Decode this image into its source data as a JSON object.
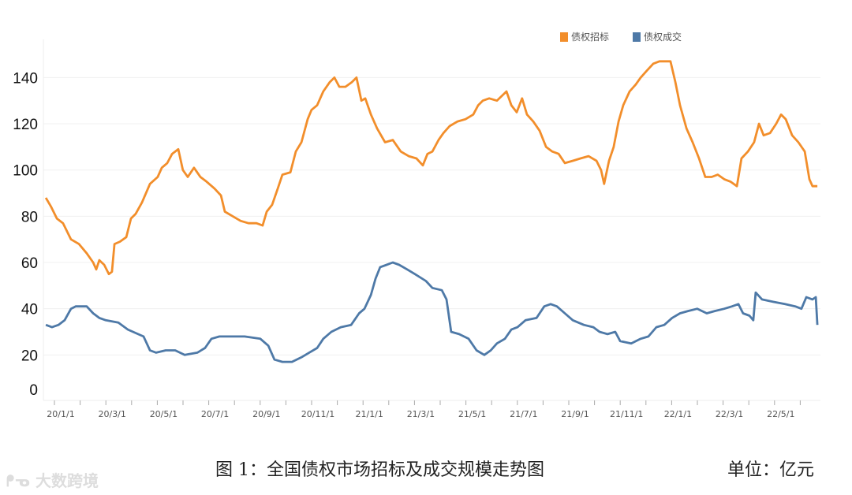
{
  "chart_data": {
    "type": "line",
    "title": "图 1：全国债权市场招标及成交规模走势图",
    "unit": "单位：亿元",
    "xlabel": "",
    "ylabel": "",
    "x_unit": "months since 2020-01-01",
    "xlim": [
      -0.7,
      29.5
    ],
    "ylim": [
      -5,
      150
    ],
    "yticks": [
      0,
      20,
      40,
      60,
      80,
      100,
      120,
      140
    ],
    "xticks": [
      {
        "m": 0,
        "label": "20/1/1"
      },
      {
        "m": 2,
        "label": "20/3/1"
      },
      {
        "m": 4,
        "label": "20/5/1"
      },
      {
        "m": 6,
        "label": "20/7/1"
      },
      {
        "m": 8,
        "label": "20/9/1"
      },
      {
        "m": 10,
        "label": "20/11/1"
      },
      {
        "m": 12,
        "label": "21/1/1"
      },
      {
        "m": 14,
        "label": "21/3/1"
      },
      {
        "m": 16,
        "label": "21/5/1"
      },
      {
        "m": 18,
        "label": "21/7/1"
      },
      {
        "m": 20,
        "label": "21/9/1"
      },
      {
        "m": 22,
        "label": "21/11/1"
      },
      {
        "m": 24,
        "label": "22/1/1"
      },
      {
        "m": 26,
        "label": "22/3/1"
      },
      {
        "m": 28,
        "label": "22/5/1"
      }
    ],
    "grid": true,
    "legend_position": "top-right",
    "series": [
      {
        "name": "债权招标",
        "color": "#F28E2B",
        "x": [
          -0.58,
          -0.37,
          -0.15,
          0.09,
          0.4,
          0.71,
          1.01,
          1.26,
          1.38,
          1.5,
          1.69,
          1.87,
          1.99,
          2.09,
          2.3,
          2.55,
          2.73,
          2.91,
          3.16,
          3.47,
          3.77,
          3.93,
          4.14,
          4.33,
          4.57,
          4.75,
          4.94,
          5.18,
          5.43,
          5.67,
          5.98,
          6.23,
          6.38,
          6.69,
          6.99,
          7.3,
          7.61,
          7.85,
          8.01,
          8.22,
          8.44,
          8.62,
          8.93,
          9.14,
          9.36,
          9.6,
          9.75,
          9.97,
          10.21,
          10.46,
          10.64,
          10.83,
          11.07,
          11.32,
          11.5,
          11.69,
          11.84,
          12.06,
          12.3,
          12.61,
          12.91,
          13.22,
          13.53,
          13.83,
          14.08,
          14.26,
          14.45,
          14.69,
          14.88,
          15.12,
          15.43,
          15.74,
          16.04,
          16.23,
          16.41,
          16.66,
          16.96,
          17.33,
          17.52,
          17.73,
          17.94,
          18.13,
          18.37,
          18.62,
          18.87,
          19.11,
          19.36,
          19.6,
          19.91,
          20.21,
          20.52,
          20.83,
          21.01,
          21.13,
          21.32,
          21.5,
          21.69,
          21.87,
          22.12,
          22.36,
          22.55,
          22.79,
          23.04,
          23.28,
          23.71,
          23.9,
          24.08,
          24.33,
          24.57,
          24.82,
          25.06,
          25.31,
          25.55,
          25.8,
          26.04,
          26.29,
          26.47,
          26.72,
          26.96,
          27.15,
          27.33,
          27.58,
          27.82,
          28.01,
          28.19,
          28.44,
          28.68,
          28.93,
          29.11,
          29.23,
          29.42
        ],
        "values": [
          88,
          84,
          79,
          77,
          70,
          68,
          64,
          60,
          57,
          61,
          59,
          55,
          56,
          68,
          69,
          71,
          79,
          81,
          86,
          94,
          97,
          101,
          103,
          107,
          109,
          100,
          97,
          101,
          97,
          95,
          92,
          89,
          82,
          80,
          78,
          77,
          77,
          76,
          82,
          85,
          92,
          98,
          99,
          108,
          112,
          122,
          126,
          128,
          134,
          138,
          140,
          136,
          136,
          138,
          140,
          130,
          131,
          124,
          118,
          112,
          113,
          108,
          106,
          105,
          102,
          107,
          108,
          113,
          116,
          119,
          121,
          122,
          124,
          128,
          130,
          131,
          130,
          134,
          128,
          125,
          131,
          124,
          121,
          117,
          110,
          108,
          107,
          103,
          104,
          105,
          106,
          104,
          100,
          94,
          104,
          110,
          121,
          128,
          134,
          137,
          140,
          143,
          146,
          147,
          147,
          138,
          128,
          118,
          112,
          105,
          97,
          97,
          98,
          96,
          95,
          93,
          105,
          108,
          112,
          120,
          115,
          116,
          120,
          124,
          122,
          115,
          112,
          108,
          96,
          93,
          93
        ]
      },
      {
        "name": "债权成交",
        "color": "#4E79A7",
        "x": [
          -0.58,
          -0.34,
          -0.09,
          0.15,
          0.4,
          0.58,
          1.01,
          1.26,
          1.5,
          1.75,
          2.24,
          2.61,
          3.01,
          3.22,
          3.47,
          3.71,
          4.08,
          4.45,
          4.82,
          5.31,
          5.61,
          5.86,
          6.17,
          6.53,
          7.15,
          7.76,
          8.07,
          8.31,
          8.62,
          8.99,
          9.36,
          9.66,
          9.97,
          10.21,
          10.52,
          10.89,
          11.29,
          11.6,
          11.81,
          12.06,
          12.24,
          12.42,
          12.67,
          12.91,
          13.16,
          13.47,
          13.77,
          14.2,
          14.45,
          14.82,
          15.0,
          15.18,
          15.49,
          15.86,
          16.17,
          16.47,
          16.72,
          16.96,
          17.27,
          17.52,
          17.76,
          18.07,
          18.5,
          18.8,
          19.05,
          19.29,
          19.6,
          19.91,
          20.34,
          20.71,
          20.95,
          21.26,
          21.56,
          21.75,
          22.18,
          22.55,
          22.85,
          23.16,
          23.47,
          23.77,
          24.08,
          24.39,
          24.75,
          25.12,
          25.43,
          25.8,
          26.1,
          26.35,
          26.53,
          26.78,
          26.93,
          27.02,
          27.27,
          27.7,
          28.16,
          28.56,
          28.8,
          28.99,
          29.23,
          29.36,
          29.42
        ],
        "values": [
          33,
          32,
          33,
          35,
          40,
          41,
          41,
          38,
          36,
          35,
          34,
          31,
          29,
          28,
          22,
          21,
          22,
          22,
          20,
          21,
          23,
          27,
          28,
          28,
          28,
          27,
          24,
          18,
          17,
          17,
          19,
          21,
          23,
          27,
          30,
          32,
          33,
          38,
          40,
          46,
          53,
          58,
          59,
          60,
          59,
          57,
          55,
          52,
          49,
          48,
          44,
          30,
          29,
          27,
          22,
          20,
          22,
          25,
          27,
          31,
          32,
          35,
          36,
          41,
          42,
          41,
          38,
          35,
          33,
          32,
          30,
          29,
          30,
          26,
          25,
          27,
          28,
          32,
          33,
          36,
          38,
          39,
          40,
          38,
          39,
          40,
          41,
          42,
          38,
          37,
          35,
          47,
          44,
          43,
          42,
          41,
          40,
          45,
          44,
          45,
          33
        ]
      }
    ]
  },
  "watermark": "大数跨境"
}
